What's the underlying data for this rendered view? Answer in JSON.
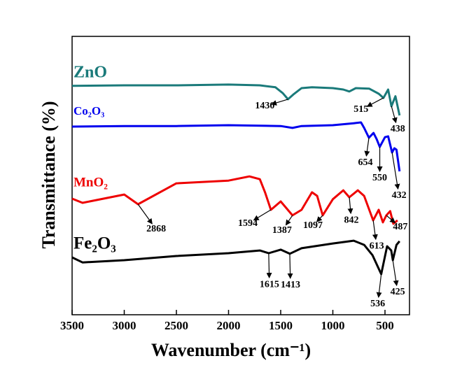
{
  "chart_data": {
    "type": "line",
    "x_label": "Wavenumber (cm⁻¹)",
    "y_label": "Transmittance (%)",
    "xlim": [
      3500,
      265
    ],
    "xticks": [
      3500,
      3000,
      2500,
      2000,
      1500,
      1000,
      500
    ],
    "ylim": [
      0,
      100
    ],
    "series": [
      {
        "name": "ZnO",
        "color": "#1a7a7a",
        "x": [
          3500,
          3000,
          2500,
          2000,
          1700,
          1550,
          1480,
          1430,
          1380,
          1300,
          1200,
          1000,
          900,
          842,
          780,
          650,
          560,
          515,
          470,
          438,
          400,
          360
        ],
        "values": [
          82.2,
          82.4,
          82.4,
          82.7,
          82.4,
          81.7,
          79.6,
          77.4,
          79.1,
          81.4,
          81.7,
          81.4,
          80.9,
          80.2,
          81.4,
          81.2,
          79.4,
          77.9,
          80.9,
          74.9,
          78.5,
          71.6
        ],
        "peaks": [
          1430,
          515,
          438
        ]
      },
      {
        "name": "Co₂O₃",
        "color": "#0000ee",
        "x": [
          3500,
          3000,
          2500,
          2000,
          1500,
          1387,
          1300,
          1000,
          800,
          730,
          700,
          654,
          610,
          580,
          550,
          500,
          470,
          432,
          410,
          390,
          360
        ],
        "values": [
          67.6,
          67.8,
          67.8,
          68.1,
          67.8,
          67.1,
          67.8,
          68.1,
          68.8,
          69.1,
          67.1,
          63.6,
          65.3,
          63.1,
          60.3,
          63.8,
          64.1,
          58.3,
          59.8,
          59.3,
          51.5
        ],
        "peaks": [
          654,
          550,
          432
        ]
      },
      {
        "name": "MnO₂",
        "color": "#ee0000",
        "x": [
          3500,
          3400,
          3000,
          2868,
          2500,
          2000,
          1800,
          1700,
          1650,
          1594,
          1500,
          1387,
          1300,
          1200,
          1150,
          1097,
          1000,
          900,
          842,
          760,
          700,
          613,
          560,
          520,
          487,
          450,
          420,
          380
        ],
        "values": [
          41.7,
          40.2,
          43.2,
          39.7,
          47.2,
          48.2,
          49.7,
          48.7,
          44.0,
          37.7,
          40.7,
          35.7,
          37.7,
          44.0,
          42.7,
          35.7,
          41.5,
          44.7,
          42.2,
          44.7,
          42.7,
          33.9,
          37.7,
          33.2,
          35.7,
          37.2,
          32.7,
          33.9
        ],
        "peaks": [
          2868,
          1594,
          1387,
          1097,
          842,
          613,
          487
        ]
      },
      {
        "name": "Fe₂O₃",
        "color": "#000000",
        "x": [
          3500,
          3400,
          3000,
          2500,
          2000,
          1700,
          1615,
          1500,
          1413,
          1300,
          1000,
          800,
          700,
          620,
          536,
          480,
          440,
          425,
          390,
          360
        ],
        "values": [
          20.6,
          18.8,
          19.6,
          21.1,
          22.1,
          23.1,
          22.1,
          23.4,
          21.9,
          23.9,
          25.6,
          26.6,
          25.1,
          21.4,
          14.6,
          24.6,
          23.1,
          19.6,
          25.1,
          26.4
        ],
        "peaks": [
          1615,
          1413,
          536,
          425
        ]
      }
    ]
  }
}
